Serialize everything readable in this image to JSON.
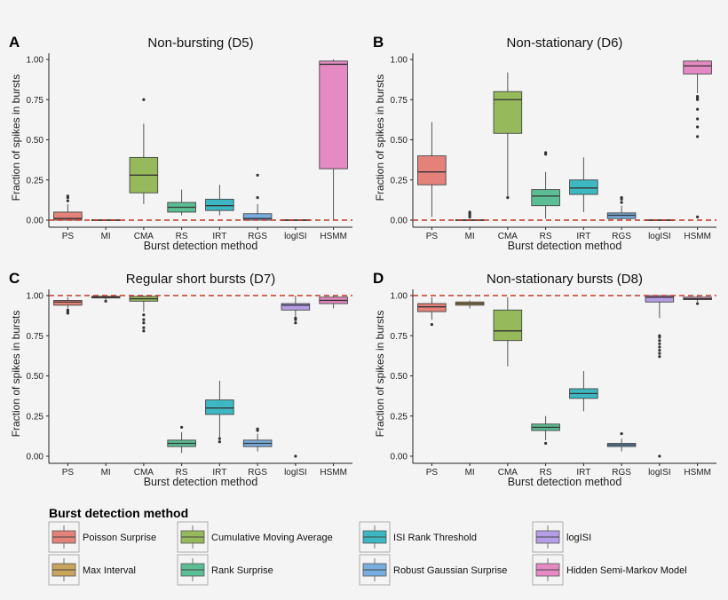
{
  "chart_data": [
    {
      "panel": "A",
      "type": "box",
      "title": "Non-bursting (D5)",
      "xlabel": "Burst detection method",
      "ylabel": "Fraction of spikes in bursts",
      "categories": [
        "PS",
        "MI",
        "CMA",
        "RS",
        "IRT",
        "RGS",
        "logISI",
        "HSMM"
      ],
      "ylim": [
        0,
        1
      ],
      "yticks": [
        "0.00",
        "0.25",
        "0.50",
        "0.75",
        "1.00"
      ],
      "reference_line": 0,
      "boxes": [
        {
          "method": "PS",
          "whisker_low": 0,
          "q1": 0,
          "median": 0.01,
          "q3": 0.05,
          "whisker_high": 0.1,
          "outliers": [
            0.12,
            0.14,
            0.15
          ]
        },
        {
          "method": "MI",
          "whisker_low": 0,
          "q1": 0,
          "median": 0,
          "q3": 0.002,
          "whisker_high": 0.003,
          "outliers": []
        },
        {
          "method": "CMA",
          "whisker_low": 0.1,
          "q1": 0.17,
          "median": 0.28,
          "q3": 0.39,
          "whisker_high": 0.6,
          "outliers": [
            0.75
          ]
        },
        {
          "method": "RS",
          "whisker_low": 0.03,
          "q1": 0.05,
          "median": 0.08,
          "q3": 0.11,
          "whisker_high": 0.19,
          "outliers": []
        },
        {
          "method": "IRT",
          "whisker_low": 0.03,
          "q1": 0.06,
          "median": 0.09,
          "q3": 0.13,
          "whisker_high": 0.22,
          "outliers": []
        },
        {
          "method": "RGS",
          "whisker_low": 0,
          "q1": 0,
          "median": 0.01,
          "q3": 0.04,
          "whisker_high": 0.1,
          "outliers": [
            0.14,
            0.28
          ]
        },
        {
          "method": "logISI",
          "whisker_low": 0,
          "q1": 0,
          "median": 0,
          "q3": 0.002,
          "whisker_high": 0.003,
          "outliers": []
        },
        {
          "method": "HSMM",
          "whisker_low": 0,
          "q1": 0.32,
          "median": 0.97,
          "q3": 0.99,
          "whisker_high": 1.0,
          "outliers": []
        }
      ]
    },
    {
      "panel": "B",
      "type": "box",
      "title": "Non-stationary (D6)",
      "xlabel": "Burst detection method",
      "ylabel": "Fraction of spikes in bursts",
      "categories": [
        "PS",
        "MI",
        "CMA",
        "RS",
        "IRT",
        "RGS",
        "logISI",
        "HSMM"
      ],
      "ylim": [
        0,
        1
      ],
      "yticks": [
        "0.00",
        "0.25",
        "0.50",
        "0.75",
        "1.00"
      ],
      "reference_line": 0,
      "boxes": [
        {
          "method": "PS",
          "whisker_low": 0.02,
          "q1": 0.22,
          "median": 0.3,
          "q3": 0.4,
          "whisker_high": 0.61,
          "outliers": []
        },
        {
          "method": "MI",
          "whisker_low": 0,
          "q1": 0,
          "median": 0,
          "q3": 0.002,
          "whisker_high": 0.01,
          "outliers": [
            0.02,
            0.03,
            0.04,
            0.05
          ]
        },
        {
          "method": "CMA",
          "whisker_low": 0.15,
          "q1": 0.54,
          "median": 0.75,
          "q3": 0.8,
          "whisker_high": 0.92,
          "outliers": [
            0.14
          ]
        },
        {
          "method": "RS",
          "whisker_low": 0.01,
          "q1": 0.09,
          "median": 0.15,
          "q3": 0.19,
          "whisker_high": 0.3,
          "outliers": [
            0.41,
            0.42
          ]
        },
        {
          "method": "IRT",
          "whisker_low": 0.05,
          "q1": 0.16,
          "median": 0.2,
          "q3": 0.25,
          "whisker_high": 0.39,
          "outliers": []
        },
        {
          "method": "RGS",
          "whisker_low": 0,
          "q1": 0.01,
          "median": 0.03,
          "q3": 0.045,
          "whisker_high": 0.09,
          "outliers": [
            0.11,
            0.13,
            0.14
          ]
        },
        {
          "method": "logISI",
          "whisker_low": 0,
          "q1": 0,
          "median": 0,
          "q3": 0.002,
          "whisker_high": 0.003,
          "outliers": []
        },
        {
          "method": "HSMM",
          "whisker_low": 0.79,
          "q1": 0.91,
          "median": 0.96,
          "q3": 0.99,
          "whisker_high": 1.0,
          "outliers": [
            0.52,
            0.58,
            0.63,
            0.69,
            0.75,
            0.76,
            0.77,
            0.02
          ]
        }
      ]
    },
    {
      "panel": "C",
      "type": "box",
      "title": "Regular short bursts (D7)",
      "xlabel": "Burst detection method",
      "ylabel": "Fraction of spikes in bursts",
      "categories": [
        "PS",
        "MI",
        "CMA",
        "RS",
        "IRT",
        "RGS",
        "logISI",
        "HSMM"
      ],
      "ylim": [
        0,
        1
      ],
      "yticks": [
        "0.00",
        "0.25",
        "0.50",
        "0.75",
        "1.00"
      ],
      "reference_line": 1,
      "boxes": [
        {
          "method": "PS",
          "whisker_low": 0.92,
          "q1": 0.94,
          "median": 0.96,
          "q3": 0.97,
          "whisker_high": 0.99,
          "outliers": [
            0.89,
            0.9,
            0.91
          ]
        },
        {
          "method": "MI",
          "whisker_low": 0.97,
          "q1": 0.985,
          "median": 0.99,
          "q3": 0.995,
          "whisker_high": 1.0,
          "outliers": [
            0.965
          ]
        },
        {
          "method": "CMA",
          "whisker_low": 0.9,
          "q1": 0.965,
          "median": 0.98,
          "q3": 0.995,
          "whisker_high": 1.0,
          "outliers": [
            0.78,
            0.8,
            0.83,
            0.85,
            0.88
          ]
        },
        {
          "method": "RS",
          "whisker_low": 0.02,
          "q1": 0.06,
          "median": 0.08,
          "q3": 0.1,
          "whisker_high": 0.15,
          "outliers": [
            0.18
          ]
        },
        {
          "method": "IRT",
          "whisker_low": 0.12,
          "q1": 0.26,
          "median": 0.3,
          "q3": 0.35,
          "whisker_high": 0.47,
          "outliers": [
            0.09,
            0.11
          ]
        },
        {
          "method": "RGS",
          "whisker_low": 0.03,
          "q1": 0.06,
          "median": 0.08,
          "q3": 0.1,
          "whisker_high": 0.14,
          "outliers": [
            0.16,
            0.17
          ]
        },
        {
          "method": "logISI",
          "whisker_low": 0.87,
          "q1": 0.91,
          "median": 0.94,
          "q3": 0.95,
          "whisker_high": 1.0,
          "outliers": [
            0.83,
            0.85,
            0.86,
            0.0
          ]
        },
        {
          "method": "HSMM",
          "whisker_low": 0.92,
          "q1": 0.95,
          "median": 0.97,
          "q3": 0.99,
          "whisker_high": 1.0,
          "outliers": []
        }
      ]
    },
    {
      "panel": "D",
      "type": "box",
      "title": "Non-stationary bursts (D8)",
      "xlabel": "Burst detection method",
      "ylabel": "Fraction of spikes in bursts",
      "categories": [
        "PS",
        "MI",
        "CMA",
        "RS",
        "IRT",
        "RGS",
        "logISI",
        "HSMM"
      ],
      "ylim": [
        0,
        1
      ],
      "yticks": [
        "0.00",
        "0.25",
        "0.50",
        "0.75",
        "1.00"
      ],
      "reference_line": 1,
      "boxes": [
        {
          "method": "PS",
          "whisker_low": 0.85,
          "q1": 0.9,
          "median": 0.93,
          "q3": 0.95,
          "whisker_high": 0.99,
          "outliers": [
            0.82
          ]
        },
        {
          "method": "MI",
          "whisker_low": 0.92,
          "q1": 0.94,
          "median": 0.95,
          "q3": 0.96,
          "whisker_high": 0.97,
          "outliers": []
        },
        {
          "method": "CMA",
          "whisker_low": 0.56,
          "q1": 0.72,
          "median": 0.78,
          "q3": 0.91,
          "whisker_high": 0.99,
          "outliers": []
        },
        {
          "method": "RS",
          "whisker_low": 0.1,
          "q1": 0.16,
          "median": 0.18,
          "q3": 0.2,
          "whisker_high": 0.25,
          "outliers": [
            0.08
          ]
        },
        {
          "method": "IRT",
          "whisker_low": 0.28,
          "q1": 0.36,
          "median": 0.39,
          "q3": 0.42,
          "whisker_high": 0.53,
          "outliers": []
        },
        {
          "method": "RGS",
          "whisker_low": 0.03,
          "q1": 0.06,
          "median": 0.07,
          "q3": 0.08,
          "whisker_high": 0.11,
          "outliers": [
            0.14
          ]
        },
        {
          "method": "logISI",
          "whisker_low": 0.86,
          "q1": 0.96,
          "median": 0.99,
          "q3": 1.0,
          "whisker_high": 1.0,
          "outliers": [
            0.62,
            0.64,
            0.66,
            0.68,
            0.7,
            0.72,
            0.74,
            0.75,
            0.0
          ]
        },
        {
          "method": "HSMM",
          "whisker_low": 0.96,
          "q1": 0.975,
          "median": 0.98,
          "q3": 0.99,
          "whisker_high": 1.0,
          "outliers": [
            0.95
          ]
        }
      ]
    }
  ],
  "legend": {
    "title": "Burst detection method",
    "entries": [
      {
        "key": "PS",
        "label": "Poisson Surprise",
        "color": "#E4827A"
      },
      {
        "key": "CMA",
        "label": "Cumulative Moving Average",
        "color": "#96B95C"
      },
      {
        "key": "IRT",
        "label": "ISI Rank Threshold",
        "color": "#3DB8C2"
      },
      {
        "key": "logISI",
        "label": "logISI",
        "color": "#B59EE6"
      },
      {
        "key": "MI",
        "label": "Max Interval",
        "color": "#C9A45C"
      },
      {
        "key": "RS",
        "label": "Rank Surprise",
        "color": "#5BBE94"
      },
      {
        "key": "RGS",
        "label": "Robust Gaussian Surprise",
        "color": "#78AEDF"
      },
      {
        "key": "HSMM",
        "label": "Hidden Semi-Markov Model",
        "color": "#E58AC3"
      }
    ]
  },
  "colors": {
    "PS": "#E4827A",
    "MI": "#C9A45C",
    "CMA": "#96B95C",
    "RS": "#5BBE94",
    "IRT": "#3DB8C2",
    "RGS": "#78AEDF",
    "logISI": "#B59EE6",
    "HSMM": "#E58AC3",
    "reference_line": "#C0392B"
  }
}
